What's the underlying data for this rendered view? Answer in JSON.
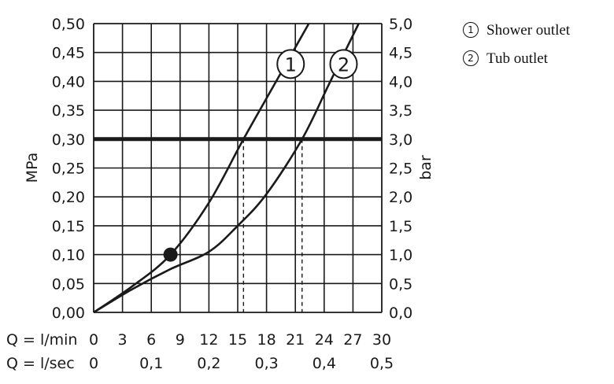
{
  "chart_data": {
    "type": "line",
    "xlabel": "Q = l/min",
    "xlabel2": "Q = l/sec",
    "ylabel": "MPa",
    "ylabel2": "bar",
    "xlim": [
      0,
      30
    ],
    "ylim": [
      0,
      0.5
    ],
    "grid": true,
    "x_ticks": [
      "0",
      "3",
      "6",
      "9",
      "12",
      "15",
      "18",
      "21",
      "24",
      "27",
      "30"
    ],
    "x2_ticks": [
      "0",
      "0,1",
      "0,2",
      "0,3",
      "0,4",
      "0,5"
    ],
    "y_ticks": [
      "0,00",
      "0,05",
      "0,10",
      "0,15",
      "0,20",
      "0,25",
      "0,30",
      "0,35",
      "0,40",
      "0,45",
      "0,50"
    ],
    "y2_ticks": [
      "0,0",
      "0,5",
      "1,0",
      "1,5",
      "2,0",
      "2,5",
      "3,0",
      "3,5",
      "4,0",
      "4,5",
      "5,0"
    ],
    "reference_line": {
      "y": 0.3
    },
    "marker_point": {
      "x": 8,
      "y": 0.1
    },
    "series": [
      {
        "name": "Shower outlet",
        "label": "1",
        "x": [
          0,
          4,
          8,
          12,
          15.6,
          19
        ],
        "y": [
          0,
          0.045,
          0.1,
          0.19,
          0.3,
          0.4
        ],
        "reference_x": 15.6
      },
      {
        "name": "Tub outlet",
        "label": "2",
        "x": [
          0,
          4,
          8,
          12,
          15,
          18,
          21.7,
          24.5
        ],
        "y": [
          0,
          0.04,
          0.075,
          0.105,
          0.15,
          0.205,
          0.3,
          0.395
        ],
        "reference_x": 21.7
      }
    ]
  },
  "legend": [
    {
      "num": "1",
      "label": "Shower outlet"
    },
    {
      "num": "2",
      "label": "Tub outlet"
    }
  ]
}
